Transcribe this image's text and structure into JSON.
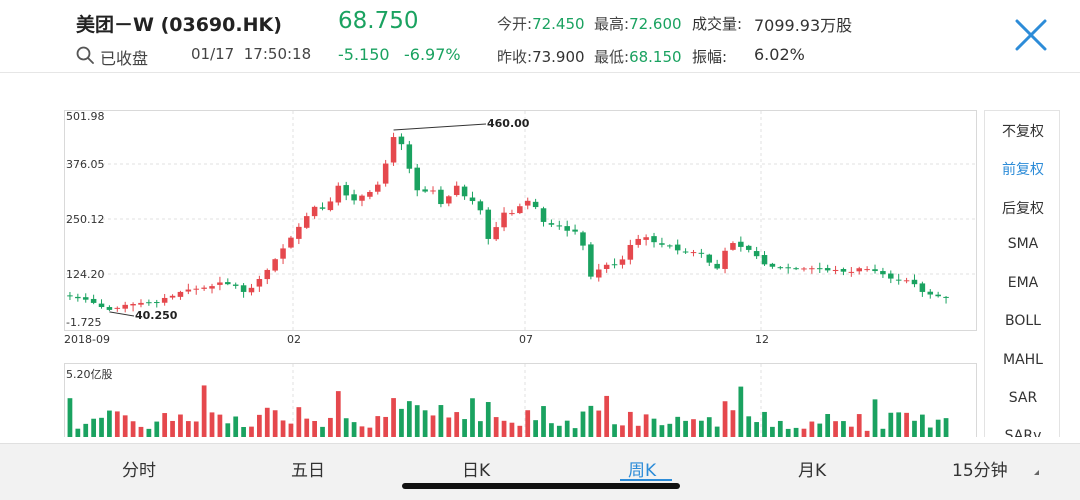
{
  "header": {
    "stock_name": "美团－W (03690.HK)",
    "price": "68.750",
    "change": "-5.150",
    "change_pct": "-6.97%",
    "market_status": "已收盘",
    "datetime": "01/17  17:50:18",
    "open_label": "今开:",
    "open": "72.450",
    "high_label": "最高:",
    "high": "72.600",
    "volume_label": "成交量:",
    "volume": "7099.93万股",
    "prev_close_label": "昨收:",
    "prev_close": "73.900",
    "low_label": "最低:",
    "low": "68.150",
    "amplitude_label": "振幅:",
    "amplitude": "6.02%"
  },
  "side_menu": [
    "不复权",
    "前复权",
    "后复权",
    "SMA",
    "EMA",
    "BOLL",
    "MAHL",
    "SAR",
    "SARv"
  ],
  "side_active": "前复权",
  "tabs": [
    "分时",
    "五日",
    "日K",
    "周K",
    "月K",
    "15分钟"
  ],
  "active_tab": "周K",
  "colors": {
    "up": "#e5484d",
    "down": "#1aa260",
    "accent": "#2d8cd8"
  },
  "chart_data": {
    "type": "candlestick",
    "y_ticks": [
      "501.98",
      "376.05",
      "250.12",
      "124.20",
      "-1.725"
    ],
    "ylim": [
      -1.725,
      501.98
    ],
    "x_ticks": [
      "2018-09",
      "02",
      "07",
      "12"
    ],
    "max_label": "460.00",
    "min_label": "40.250",
    "volume_label": "5.20亿股",
    "weekly_close": [
      72.0,
      67.5,
      64.0,
      56.5,
      47.0,
      40.3,
      45.0,
      52.0,
      54.0,
      56.5,
      56.0,
      58.5,
      68.0,
      73.0,
      82.0,
      87.5,
      89.5,
      92.0,
      95.5,
      104.0,
      100.0,
      96.0,
      82.0,
      91.5,
      112.0,
      133.0,
      158.0,
      183.0,
      208.0,
      233.0,
      258.0,
      279.5,
      275.0,
      292.0,
      328.5,
      306.0,
      294.5,
      305.5,
      314.0,
      331.0,
      380.0,
      441.5,
      425.0,
      368.0,
      318.0,
      315.0,
      317.5,
      286.0,
      304.0,
      328.5,
      304.0,
      293.0,
      271.5,
      205.0,
      232.5,
      266.0,
      265.0,
      281.0,
      293.5,
      279.0,
      244.5,
      238.0,
      234.0,
      224.0,
      222.0,
      189.5,
      117.5,
      134.0,
      145.0,
      146.0,
      157.5,
      191.0,
      205.0,
      209.0,
      197.5,
      191.5,
      189.0,
      178.5,
      174.0,
      174.5,
      171.0,
      150.0,
      136.5,
      177.5,
      195.5,
      186.5,
      179.5,
      165.0,
      146.0,
      140.5,
      139.0,
      138.0,
      136.5,
      136.5,
      137.0,
      136.0,
      132.0,
      133.0,
      129.0,
      128.5,
      137.0,
      135.0,
      130.5,
      123.0,
      113.0,
      110.5,
      109.0,
      100.0,
      82.0,
      76.0,
      72.0,
      68.8
    ]
  }
}
